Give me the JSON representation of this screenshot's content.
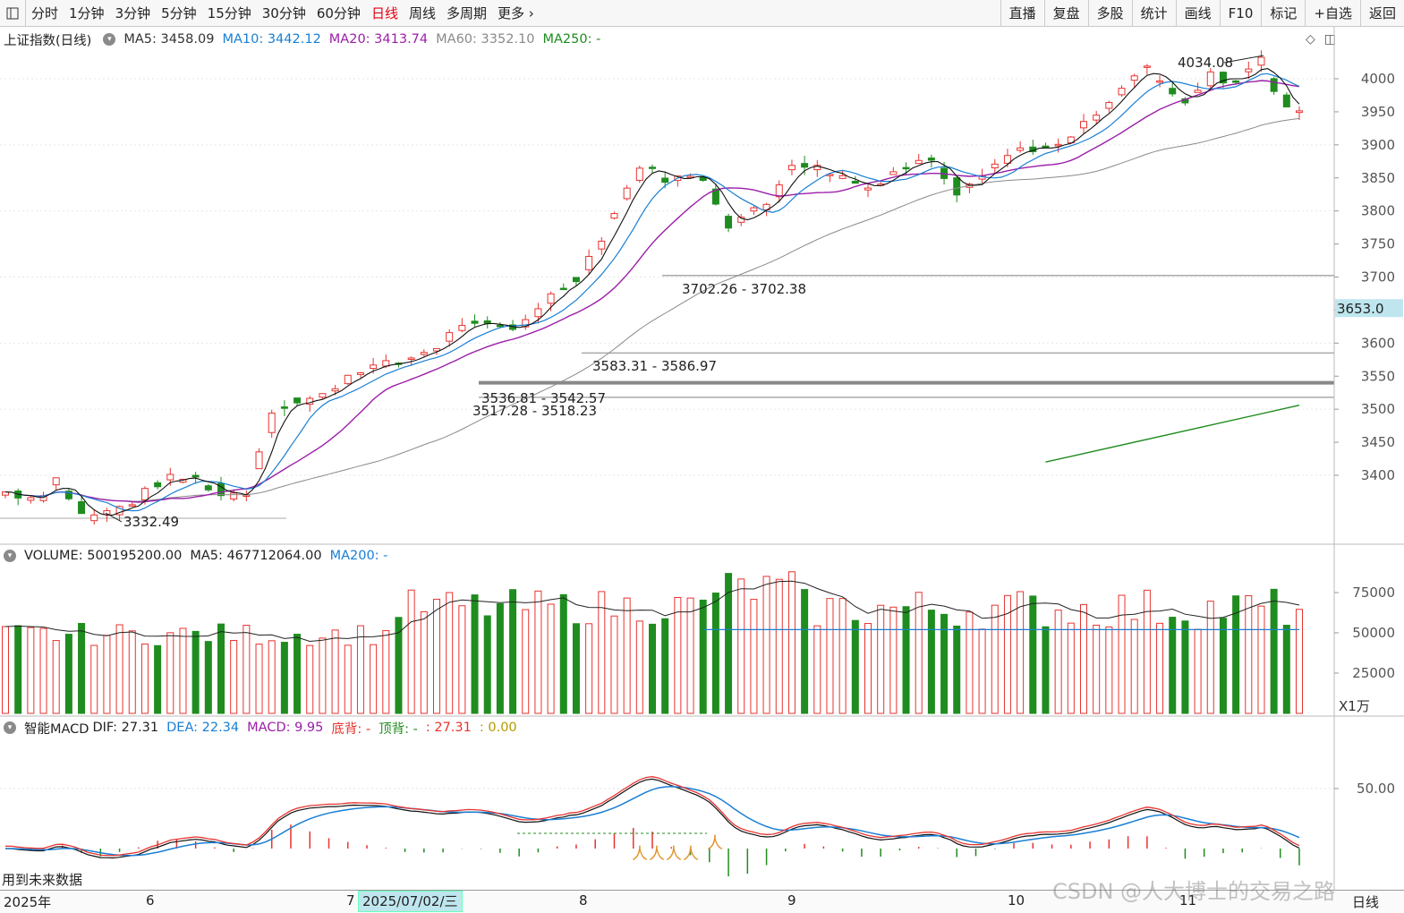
{
  "toolbar": {
    "periods": [
      "分时",
      "1分钟",
      "3分钟",
      "5分钟",
      "15分钟",
      "30分钟",
      "60分钟",
      "日线",
      "周线",
      "多周期",
      "更多"
    ],
    "active": "日线",
    "right": [
      "直播",
      "复盘",
      "多股",
      "统计",
      "画线",
      "F10",
      "标记",
      "+自选",
      "返回"
    ]
  },
  "price_legend": {
    "title": "上证指数(日线)",
    "ma5": "MA5: 3458.09",
    "ma10": "MA10: 3442.12",
    "ma20": "MA20: 3413.74",
    "ma60": "MA60: 3352.10",
    "ma250": "MA250: -"
  },
  "volume_legend": {
    "vol": "VOLUME: 500195200.00",
    "ma5": "MA5: 467712064.00",
    "ma200": "MA200: -"
  },
  "macd_legend": {
    "title": "智能MACD",
    "dif": "DIF: 27.31",
    "dea": "DEA: 22.34",
    "macd": "MACD: 9.95",
    "bottom": "底背: -",
    "top": "顶背: -",
    "v1": ": 27.31",
    "v2": ": 0.00"
  },
  "annotations": {
    "high": "4034.08",
    "low": "3332.49",
    "h1": "3702.26 - 3702.38",
    "h2": "3583.31 - 3586.97",
    "h3": "3536.81 - 3542.57",
    "h4": "3517.28 - 3518.23"
  },
  "price_axis": [
    "4000",
    "3950",
    "3900",
    "3850",
    "3800",
    "3750",
    "3700",
    "3650",
    "3600",
    "3550",
    "3500",
    "3450",
    "3400"
  ],
  "current_price": "3653.0",
  "volume_axis": [
    "75000",
    "50000",
    "25000"
  ],
  "volume_unit": "X1万",
  "macd_axis": [
    "50.00"
  ],
  "footer": {
    "note": "用到未来数据",
    "period": "日线",
    "date_tag": "2025/07/02/三",
    "x_labels": [
      "2025年",
      "6",
      "7",
      "8",
      "9",
      "10",
      "11"
    ]
  },
  "watermark": "CSDN @人大博士的交易之路",
  "colors": {
    "up": "#e8332f",
    "down": "#1f8c1f",
    "ma5": "#111111",
    "ma10": "#1a7fd4",
    "ma20": "#9b1fa8",
    "ma60": "#8a8a8a",
    "ma250": "#1f8c1f"
  },
  "chart_data": {
    "type": "candlestick",
    "title": "上证指数(日线)",
    "ylim": [
      3300,
      4060
    ],
    "price_ticks": [
      3400,
      3450,
      3500,
      3550,
      3600,
      3650,
      3700,
      3750,
      3800,
      3850,
      3900,
      3950,
      4000
    ],
    "horizontal_levels": [
      3702.3,
      3585,
      3540,
      3518
    ],
    "close_control_points": [
      [
        0,
        3375
      ],
      [
        5,
        3365
      ],
      [
        8,
        3395
      ],
      [
        12,
        3340
      ],
      [
        15,
        3340
      ],
      [
        20,
        3360
      ],
      [
        25,
        3395
      ],
      [
        30,
        3395
      ],
      [
        34,
        3370
      ],
      [
        38,
        3375
      ],
      [
        42,
        3500
      ],
      [
        50,
        3520
      ],
      [
        55,
        3560
      ],
      [
        62,
        3570
      ],
      [
        68,
        3595
      ],
      [
        72,
        3630
      ],
      [
        74,
        3625
      ],
      [
        80,
        3620
      ],
      [
        85,
        3665
      ],
      [
        90,
        3700
      ],
      [
        94,
        3760
      ],
      [
        100,
        3870
      ],
      [
        104,
        3850
      ],
      [
        110,
        3850
      ],
      [
        114,
        3780
      ],
      [
        120,
        3810
      ],
      [
        124,
        3875
      ],
      [
        130,
        3860
      ],
      [
        136,
        3835
      ],
      [
        140,
        3860
      ],
      [
        146,
        3880
      ],
      [
        150,
        3830
      ],
      [
        154,
        3860
      ],
      [
        160,
        3895
      ],
      [
        166,
        3895
      ],
      [
        170,
        3930
      ],
      [
        174,
        3960
      ],
      [
        176,
        3985
      ],
      [
        180,
        4020
      ],
      [
        182,
        3990
      ],
      [
        186,
        3960
      ],
      [
        190,
        4005
      ],
      [
        194,
        3995
      ],
      [
        198,
        4030
      ],
      [
        200,
        3985
      ],
      [
        202,
        3960
      ],
      [
        204,
        3945
      ]
    ],
    "ma250_start": {
      "index": 164,
      "value": 3420
    },
    "ma250_end": {
      "index": 204,
      "value": 3506
    },
    "volume_ylim": [
      0,
      110000
    ],
    "volume_ticks": [
      25000,
      50000,
      75000
    ],
    "macd_ylim": [
      -50,
      80
    ],
    "macd_ticks": [
      50
    ]
  }
}
